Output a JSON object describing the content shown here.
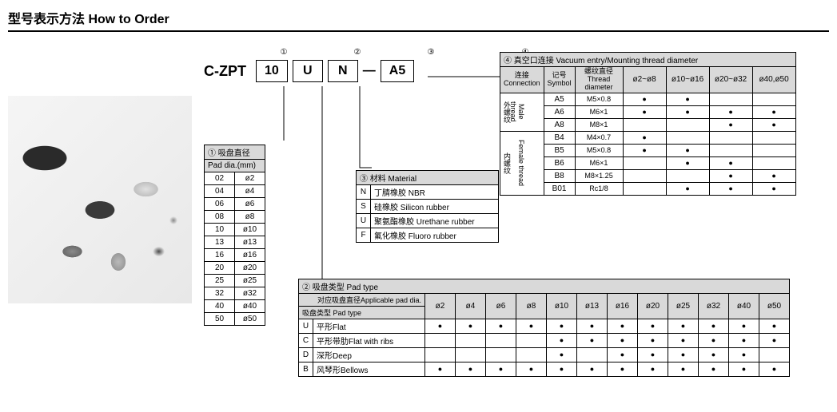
{
  "title": "型号表示方法 How to Order",
  "order": {
    "prefix": "C-ZPT",
    "slots": [
      {
        "num": "①",
        "val": "10",
        "leader_to": "pad_dia"
      },
      {
        "num": "②",
        "val": "U",
        "leader_to": "pad_type"
      },
      {
        "num": "③",
        "val": "N",
        "leader_to": "material"
      },
      {
        "num": "④",
        "val": "A5",
        "leader_to": "vacuum"
      }
    ],
    "dash": "—"
  },
  "pad_dia": {
    "title": "① 吸盘直径",
    "subtitle": "Pad dia.(mm)",
    "rows": [
      [
        "02",
        "ø2"
      ],
      [
        "04",
        "ø4"
      ],
      [
        "06",
        "ø6"
      ],
      [
        "08",
        "ø8"
      ],
      [
        "10",
        "ø10"
      ],
      [
        "13",
        "ø13"
      ],
      [
        "16",
        "ø16"
      ],
      [
        "20",
        "ø20"
      ],
      [
        "25",
        "ø25"
      ],
      [
        "32",
        "ø32"
      ],
      [
        "40",
        "ø40"
      ],
      [
        "50",
        "ø50"
      ]
    ]
  },
  "material": {
    "title": "③ 材料 Material",
    "rows": [
      [
        "N",
        "丁腈橡胶 NBR"
      ],
      [
        "S",
        "硅橡胶 Silicon rubber"
      ],
      [
        "U",
        "聚氨酯橡胶 Urethane rubber"
      ],
      [
        "F",
        "氟化橡胶 Fluoro rubber"
      ]
    ]
  },
  "pad_type": {
    "title": "② 吸盘类型 Pad type",
    "col_header": "对应吸盘直径Applicable pad dia.",
    "row_header": "吸盘类型 Pad type",
    "cols": [
      "ø2",
      "ø4",
      "ø6",
      "ø8",
      "ø10",
      "ø13",
      "ø16",
      "ø20",
      "ø25",
      "ø32",
      "ø40",
      "ø50"
    ],
    "rows": [
      {
        "sym": "U",
        "name": "平形Flat",
        "dots": [
          1,
          1,
          1,
          1,
          1,
          1,
          1,
          1,
          1,
          1,
          1,
          1
        ]
      },
      {
        "sym": "C",
        "name": "平形带肋Flat with ribs",
        "dots": [
          0,
          0,
          0,
          0,
          1,
          1,
          1,
          1,
          1,
          1,
          1,
          1
        ]
      },
      {
        "sym": "D",
        "name": "深形Deep",
        "dots": [
          0,
          0,
          0,
          0,
          1,
          0,
          1,
          1,
          1,
          1,
          1,
          0
        ]
      },
      {
        "sym": "B",
        "name": "风琴形Bellows",
        "dots": [
          1,
          1,
          1,
          1,
          1,
          1,
          1,
          1,
          1,
          1,
          1,
          1
        ]
      }
    ]
  },
  "vacuum": {
    "title": "④ 真空口连接 Vacuum entry/Mounting thread diameter",
    "headers": {
      "connection": "连接\nConnection",
      "symbol": "记号\nSymbol",
      "thread": "螺纹直径\nThread diameter"
    },
    "cols": [
      "ø2~ø8",
      "ø10~ø16",
      "ø20~ø32",
      "ø40,ø50"
    ],
    "groups": [
      {
        "cn": "外螺纹",
        "en": "Male thread",
        "rows": [
          {
            "sym": "A5",
            "thread": "M5×0.8",
            "dots": [
              1,
              1,
              0,
              0
            ]
          },
          {
            "sym": "A6",
            "thread": "M6×1",
            "dots": [
              1,
              1,
              1,
              1
            ]
          },
          {
            "sym": "A8",
            "thread": "M8×1",
            "dots": [
              0,
              0,
              1,
              1
            ]
          }
        ]
      },
      {
        "cn": "内螺纹",
        "en": "Female thread",
        "rows": [
          {
            "sym": "B4",
            "thread": "M4×0.7",
            "dots": [
              1,
              0,
              0,
              0
            ]
          },
          {
            "sym": "B5",
            "thread": "M5×0.8",
            "dots": [
              1,
              1,
              0,
              0
            ]
          },
          {
            "sym": "B6",
            "thread": "M6×1",
            "dots": [
              0,
              1,
              1,
              0
            ]
          },
          {
            "sym": "B8",
            "thread": "M8×1.25",
            "dots": [
              0,
              0,
              1,
              1
            ]
          },
          {
            "sym": "B01",
            "thread": "Rc1/8",
            "dots": [
              0,
              1,
              1,
              1
            ]
          }
        ]
      }
    ]
  }
}
